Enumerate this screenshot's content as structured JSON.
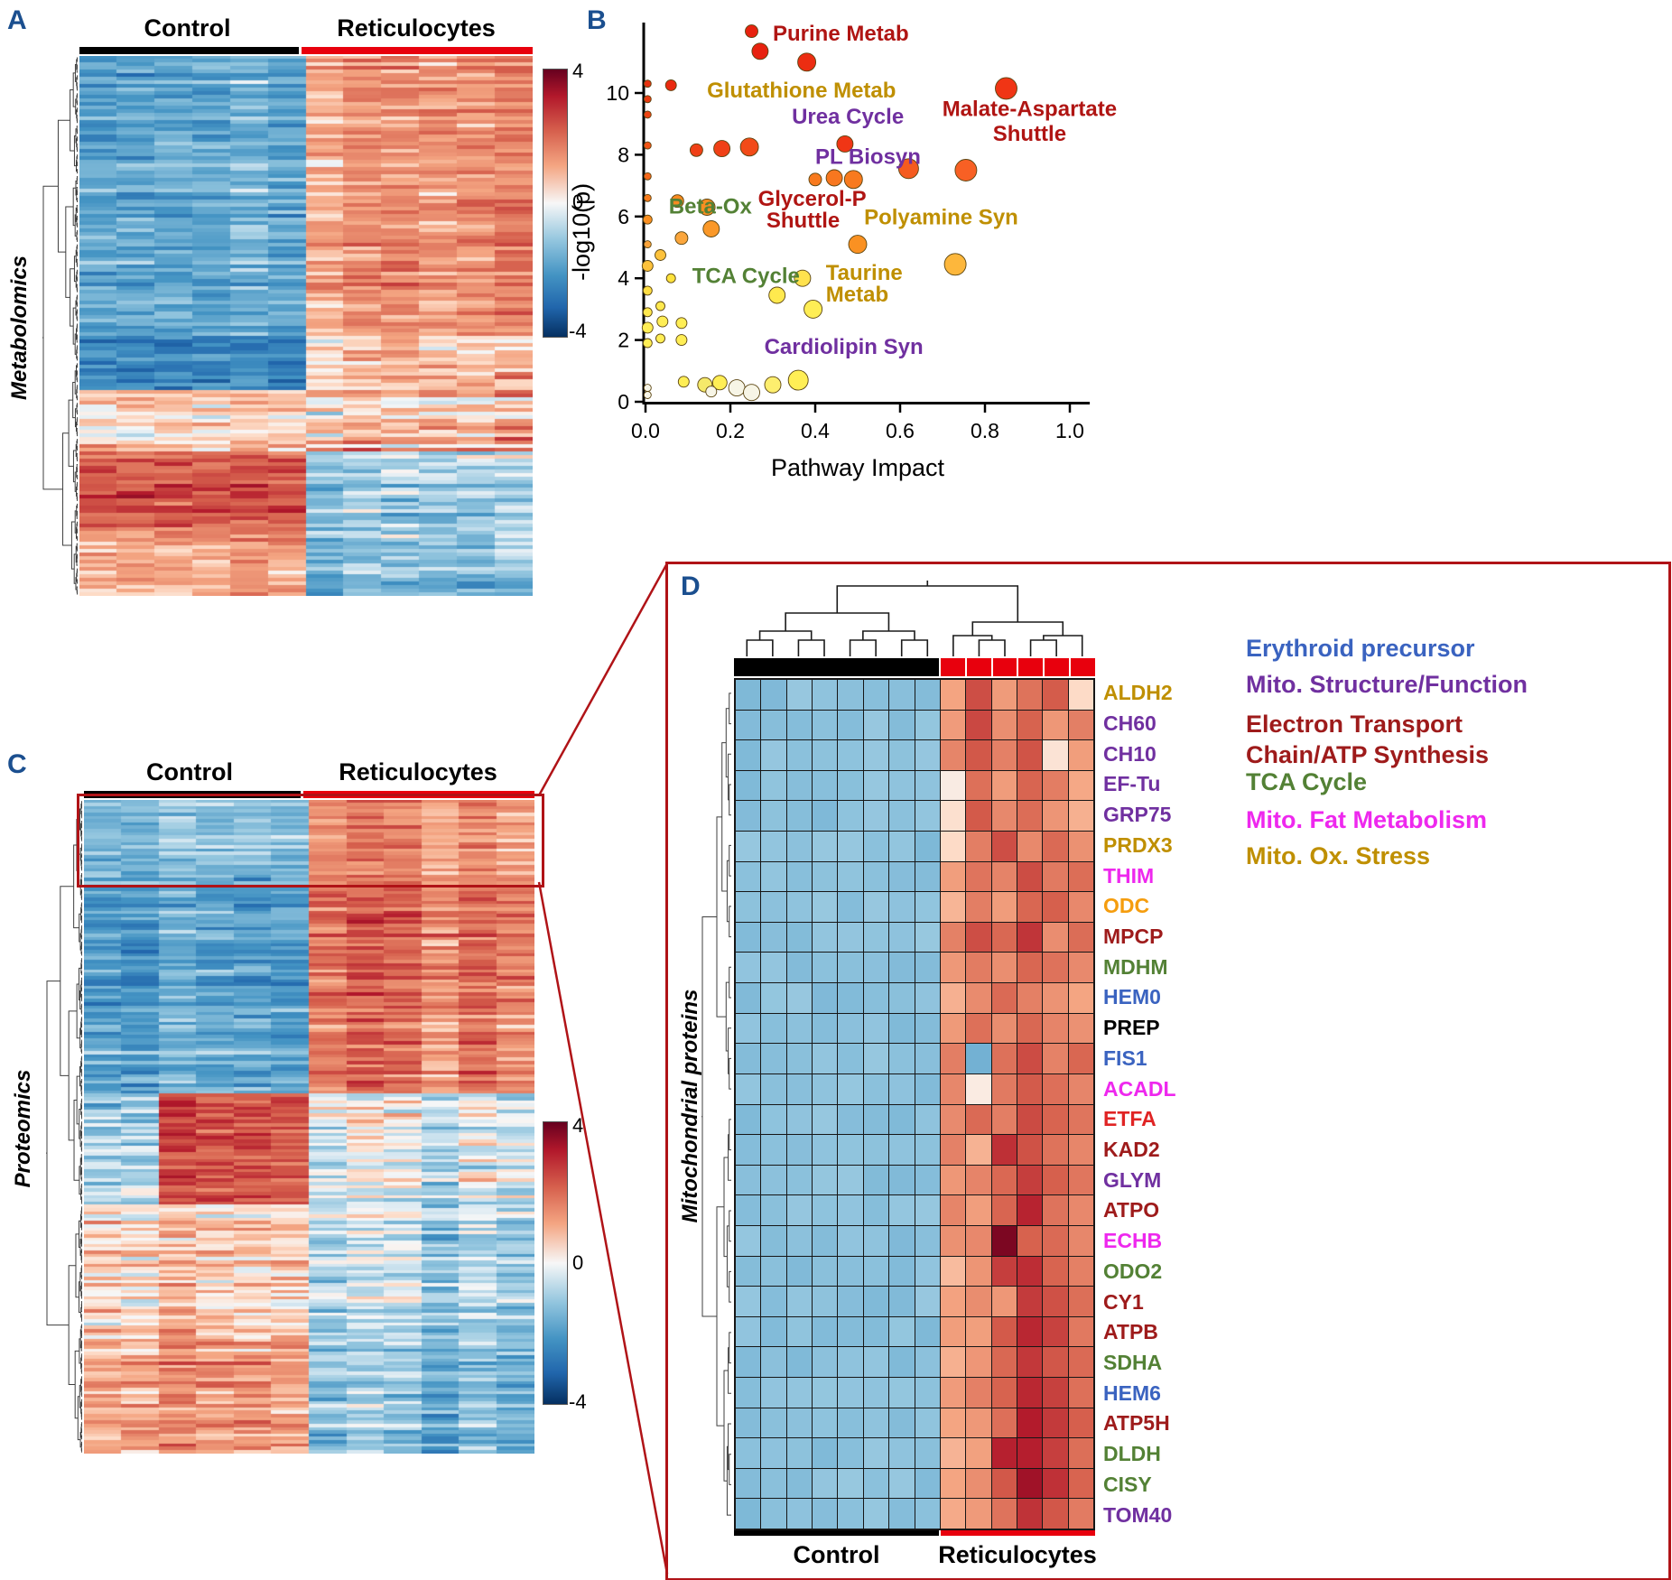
{
  "colors": {
    "panel_letter": "#1b4f8f",
    "highlight_red": "#b01317",
    "bar_black": "#000000",
    "bar_red": "#e8000d",
    "dendrogram": "#3f3f3f"
  },
  "colormap": {
    "stops": [
      [
        -4,
        "#053061"
      ],
      [
        -3,
        "#2166ac"
      ],
      [
        -2,
        "#4393c3"
      ],
      [
        -1,
        "#92c5de"
      ],
      [
        -0.4,
        "#d1e5f0"
      ],
      [
        0,
        "#f7f7f7"
      ],
      [
        0.4,
        "#fddbc7"
      ],
      [
        1,
        "#f4a582"
      ],
      [
        2,
        "#d6604d"
      ],
      [
        3,
        "#b2182b"
      ],
      [
        4,
        "#67001f"
      ]
    ]
  },
  "panels": {
    "a": "A",
    "b": "B",
    "c": "C",
    "d": "D"
  },
  "chart_data": [
    {
      "panel": "A",
      "type": "heatmap",
      "title": "Metabolomics",
      "col_groups": [
        {
          "name": "Control",
          "n": 6
        },
        {
          "name": "Reticulocytes",
          "n": 6
        }
      ],
      "n_rows": 150,
      "n_cols": 12,
      "value_range": [
        -4,
        4
      ],
      "colorbar_ticks": [
        "4",
        "0",
        "-4"
      ],
      "pattern_bands": [
        {
          "range": [
            0,
            0.52
          ],
          "control_mean": -1.7,
          "retic_mean": 1.3,
          "row_sd": 0.7,
          "cell_sd": 0.8
        },
        {
          "range": [
            0.52,
            0.62
          ],
          "control_mean": -2.4,
          "retic_mean": 0.7,
          "row_sd": 0.8,
          "cell_sd": 1.0
        },
        {
          "range": [
            0.62,
            0.73
          ],
          "control_mean": 0.6,
          "retic_mean": 0.9,
          "row_sd": 1.2,
          "cell_sd": 1.1
        },
        {
          "range": [
            0.73,
            0.88
          ],
          "control_mean": 1.9,
          "retic_mean": -0.8,
          "row_sd": 0.9,
          "cell_sd": 0.9
        },
        {
          "range": [
            0.88,
            1.01
          ],
          "control_mean": 0.9,
          "retic_mean": -1.2,
          "row_sd": 0.8,
          "cell_sd": 0.9
        }
      ]
    },
    {
      "panel": "B",
      "type": "scatter",
      "xlabel": "Pathway Impact",
      "ylabel": "-log10(p)",
      "xlim": [
        0,
        1.05
      ],
      "ylim": [
        0,
        12.3
      ],
      "xticks": [
        "0.0",
        "0.2",
        "0.4",
        "0.6",
        "0.8",
        "1.0"
      ],
      "yticks": [
        "0",
        "2",
        "4",
        "6",
        "8",
        "10"
      ],
      "points": [
        {
          "x": 0.005,
          "y": 10.3,
          "r": 4,
          "c": "#e63211"
        },
        {
          "x": 0.005,
          "y": 9.8,
          "r": 4,
          "c": "#e83a12"
        },
        {
          "x": 0.005,
          "y": 9.3,
          "r": 4,
          "c": "#ee4414"
        },
        {
          "x": 0.005,
          "y": 8.3,
          "r": 4,
          "c": "#f15317"
        },
        {
          "x": 0.005,
          "y": 7.3,
          "r": 4,
          "c": "#f5671c"
        },
        {
          "x": 0.005,
          "y": 6.6,
          "r": 4,
          "c": "#f87b1e"
        },
        {
          "x": 0.005,
          "y": 5.9,
          "r": 5,
          "c": "#fa8f21"
        },
        {
          "x": 0.005,
          "y": 5.1,
          "r": 4,
          "c": "#fba33a"
        },
        {
          "x": 0.005,
          "y": 4.4,
          "r": 6,
          "c": "#fdc23c"
        },
        {
          "x": 0.005,
          "y": 3.6,
          "r": 5,
          "c": "#fede44"
        },
        {
          "x": 0.005,
          "y": 2.9,
          "r": 5,
          "c": "#ffe84e"
        },
        {
          "x": 0.005,
          "y": 2.4,
          "r": 6,
          "c": "#ffee55"
        },
        {
          "x": 0.005,
          "y": 1.9,
          "r": 5,
          "c": "#ffee55"
        },
        {
          "x": 0.005,
          "y": 0.45,
          "r": 4,
          "c": "#f7f5e8"
        },
        {
          "x": 0.005,
          "y": 0.22,
          "r": 4,
          "c": "#f7f5e8"
        },
        {
          "x": 0.25,
          "y": 12.0,
          "r": 7,
          "c": "#e8220f"
        },
        {
          "x": 0.27,
          "y": 11.35,
          "r": 9,
          "c": "#e8220f"
        },
        {
          "x": 0.38,
          "y": 11.0,
          "r": 10,
          "c": "#ec2d12"
        },
        {
          "x": 0.06,
          "y": 10.25,
          "r": 6,
          "c": "#ea2a10"
        },
        {
          "x": 0.85,
          "y": 10.15,
          "r": 12,
          "c": "#f03515"
        },
        {
          "x": 0.12,
          "y": 8.15,
          "r": 7,
          "c": "#f04016"
        },
        {
          "x": 0.18,
          "y": 8.2,
          "r": 9,
          "c": "#f04016"
        },
        {
          "x": 0.245,
          "y": 8.25,
          "r": 10,
          "c": "#f24b18"
        },
        {
          "x": 0.47,
          "y": 8.35,
          "r": 9,
          "c": "#f03515"
        },
        {
          "x": 0.62,
          "y": 7.55,
          "r": 11,
          "c": "#f55b1f"
        },
        {
          "x": 0.755,
          "y": 7.5,
          "r": 12,
          "c": "#f86024"
        },
        {
          "x": 0.4,
          "y": 7.2,
          "r": 7,
          "c": "#f87a1e"
        },
        {
          "x": 0.445,
          "y": 7.25,
          "r": 9,
          "c": "#f8771f"
        },
        {
          "x": 0.49,
          "y": 7.2,
          "r": 10,
          "c": "#f87a1e"
        },
        {
          "x": 0.075,
          "y": 6.5,
          "r": 7,
          "c": "#f98a20"
        },
        {
          "x": 0.145,
          "y": 6.3,
          "r": 9,
          "c": "#fa8e21"
        },
        {
          "x": 0.155,
          "y": 5.6,
          "r": 9,
          "c": "#fa9828"
        },
        {
          "x": 0.085,
          "y": 5.3,
          "r": 7,
          "c": "#fba63c"
        },
        {
          "x": 0.5,
          "y": 5.1,
          "r": 10,
          "c": "#fa9122"
        },
        {
          "x": 0.73,
          "y": 4.45,
          "r": 12,
          "c": "#fdb73c"
        },
        {
          "x": 0.035,
          "y": 4.75,
          "r": 6,
          "c": "#fdc23c"
        },
        {
          "x": 0.06,
          "y": 4.0,
          "r": 5,
          "c": "#fde23c"
        },
        {
          "x": 0.37,
          "y": 4.0,
          "r": 9,
          "c": "#ffe24e"
        },
        {
          "x": 0.31,
          "y": 3.45,
          "r": 9,
          "c": "#ffe94e"
        },
        {
          "x": 0.395,
          "y": 3.0,
          "r": 10,
          "c": "#ffee55"
        },
        {
          "x": 0.035,
          "y": 3.1,
          "r": 5,
          "c": "#ffe94e"
        },
        {
          "x": 0.04,
          "y": 2.6,
          "r": 6,
          "c": "#ffee55"
        },
        {
          "x": 0.085,
          "y": 2.55,
          "r": 6,
          "c": "#ffee55"
        },
        {
          "x": 0.035,
          "y": 2.05,
          "r": 5,
          "c": "#ffee55"
        },
        {
          "x": 0.085,
          "y": 2.0,
          "r": 6,
          "c": "#ffee55"
        },
        {
          "x": 0.09,
          "y": 0.65,
          "r": 6,
          "c": "#ffee55"
        },
        {
          "x": 0.14,
          "y": 0.55,
          "r": 8,
          "c": "#f5e96a"
        },
        {
          "x": 0.175,
          "y": 0.62,
          "r": 8,
          "c": "#ffee55"
        },
        {
          "x": 0.215,
          "y": 0.45,
          "r": 9,
          "c": "#f7f5e6"
        },
        {
          "x": 0.25,
          "y": 0.3,
          "r": 9,
          "c": "#f7f5e6"
        },
        {
          "x": 0.3,
          "y": 0.55,
          "r": 9,
          "c": "#fdee6e"
        },
        {
          "x": 0.36,
          "y": 0.7,
          "r": 11,
          "c": "#ffee55"
        },
        {
          "x": 0.155,
          "y": 0.33,
          "r": 6,
          "c": "#f7f5e6"
        }
      ],
      "annotations": [
        {
          "text": "Purine Metab",
          "x": 0.3,
          "y": 11.7,
          "color": "#b01513",
          "anchor": "start"
        },
        {
          "text": "Glutathione Metab",
          "x": 0.145,
          "y": 9.85,
          "color": "#bf8f00",
          "anchor": "start"
        },
        {
          "text": "Urea Cycle",
          "x": 0.345,
          "y": 9.0,
          "color": "#7030a0",
          "anchor": "start"
        },
        {
          "text": "Malate-Aspartate",
          "x": 0.905,
          "y": 9.25,
          "color": "#b01513",
          "anchor": "middle"
        },
        {
          "text": "Shuttle",
          "x": 0.905,
          "y": 8.45,
          "color": "#b01513",
          "anchor": "middle"
        },
        {
          "text": "PL Biosyn",
          "x": 0.4,
          "y": 7.7,
          "color": "#7030a0",
          "anchor": "start"
        },
        {
          "text": "Beta-Ox",
          "x": 0.055,
          "y": 6.1,
          "color": "#538135",
          "anchor": "start"
        },
        {
          "text": "Glycerol-P",
          "x": 0.265,
          "y": 6.35,
          "color": "#b01513",
          "anchor": "start"
        },
        {
          "text": "Shuttle",
          "x": 0.285,
          "y": 5.65,
          "color": "#b01513",
          "anchor": "start"
        },
        {
          "text": "Polyamine Syn",
          "x": 0.515,
          "y": 5.75,
          "color": "#bf8f00",
          "anchor": "start"
        },
        {
          "text": "TCA Cycle",
          "x": 0.11,
          "y": 3.85,
          "color": "#538135",
          "anchor": "start"
        },
        {
          "text": "Taurine",
          "x": 0.425,
          "y": 3.95,
          "color": "#bf8f00",
          "anchor": "start"
        },
        {
          "text": "Metab",
          "x": 0.425,
          "y": 3.25,
          "color": "#bf8f00",
          "anchor": "start"
        },
        {
          "text": "Cardiolipin Syn",
          "x": 0.28,
          "y": 1.55,
          "color": "#7030a0",
          "anchor": "start"
        }
      ]
    },
    {
      "panel": "C",
      "type": "heatmap",
      "title": "Proteomics",
      "col_groups": [
        {
          "name": "Control",
          "n": 6
        },
        {
          "name": "Reticulocytes",
          "n": 6
        }
      ],
      "n_rows": 200,
      "n_cols": 12,
      "value_range": [
        -4,
        4
      ],
      "colorbar_ticks": [
        "4",
        "0",
        "-4"
      ],
      "highlight_rows": [
        0,
        0.12
      ],
      "pattern_bands": [
        {
          "range": [
            0,
            0.12
          ],
          "control_mean": -1.0,
          "retic_mean": 1.3,
          "row_sd": 0.5,
          "cell_sd": 0.7
        },
        {
          "range": [
            0.12,
            0.45
          ],
          "control_mean": -1.5,
          "retic_mean": 1.7,
          "row_sd": 0.7,
          "cell_sd": 0.8
        },
        {
          "range": [
            0.45,
            0.62
          ],
          "control_mean": -0.6,
          "retic_mean": -0.2,
          "row_sd": 0.9,
          "cell_sd": 0.9,
          "control_block": {
            "cols": [
              2,
              5
            ],
            "mean": 2.3
          }
        },
        {
          "range": [
            0.62,
            0.82
          ],
          "control_mean": 0.7,
          "retic_mean": -0.8,
          "row_sd": 0.9,
          "cell_sd": 0.9
        },
        {
          "range": [
            0.82,
            1.01
          ],
          "control_mean": 1.2,
          "retic_mean": -1.2,
          "row_sd": 0.8,
          "cell_sd": 0.9
        }
      ]
    },
    {
      "panel": "D",
      "type": "heatmap",
      "title": "Mitochondrial proteins",
      "col_groups": [
        {
          "name": "Control",
          "n": 8
        },
        {
          "name": "Reticulocytes",
          "n": 6
        }
      ],
      "value_range": [
        -4,
        4
      ],
      "control_value": -1.1,
      "rows": [
        {
          "name": "ALDH2",
          "color": "#bf8f00",
          "retic": [
            1.0,
            2.2,
            1.2,
            1.8,
            2.0,
            0.4
          ]
        },
        {
          "name": "CH60",
          "color": "#7030a0",
          "retic": [
            1.2,
            2.4,
            1.4,
            2.0,
            1.2,
            1.5
          ]
        },
        {
          "name": "CH10",
          "color": "#7030a0",
          "retic": [
            1.4,
            2.2,
            1.6,
            2.2,
            0.3,
            1.2
          ]
        },
        {
          "name": "EF-Tu",
          "color": "#7030a0",
          "retic": [
            0.2,
            1.8,
            1.2,
            2.0,
            1.5,
            1.0
          ]
        },
        {
          "name": "GRP75",
          "color": "#7030a0",
          "retic": [
            0.3,
            2.0,
            1.5,
            1.8,
            1.2,
            0.8
          ]
        },
        {
          "name": "PRDX3",
          "color": "#bf8f00",
          "retic": [
            0.4,
            1.6,
            2.2,
            1.4,
            1.8,
            1.2
          ]
        },
        {
          "name": "THIM",
          "color": "#ee28ee",
          "retic": [
            1.2,
            1.8,
            1.4,
            2.2,
            1.6,
            1.9
          ]
        },
        {
          "name": "ODC",
          "color": "#f59d0e",
          "retic": [
            0.8,
            1.5,
            1.2,
            1.8,
            2.0,
            1.4
          ]
        },
        {
          "name": "MPCP",
          "color": "#9e1b1b",
          "retic": [
            1.5,
            2.2,
            1.8,
            2.6,
            1.4,
            1.8
          ]
        },
        {
          "name": "MDHM",
          "color": "#538135",
          "retic": [
            1.2,
            1.6,
            1.4,
            2.0,
            1.8,
            1.5
          ]
        },
        {
          "name": "HEM0",
          "color": "#3a63c0",
          "retic": [
            0.9,
            1.4,
            1.8,
            1.5,
            1.2,
            1.0
          ]
        },
        {
          "name": "PREP",
          "color": "#000000",
          "retic": [
            1.1,
            1.7,
            1.3,
            1.9,
            1.5,
            1.2
          ]
        },
        {
          "name": "FIS1",
          "color": "#3a63c0",
          "retic": [
            1.6,
            -1.4,
            1.8,
            2.2,
            1.5,
            1.8
          ]
        },
        {
          "name": "ACADL",
          "color": "#ee28ee",
          "retic": [
            1.4,
            0.2,
            1.6,
            2.0,
            1.8,
            1.5
          ]
        },
        {
          "name": "ETFA",
          "color": "#e02424",
          "retic": [
            1.3,
            1.8,
            1.5,
            2.2,
            2.0,
            1.6
          ]
        },
        {
          "name": "KAD2",
          "color": "#9e1b1b",
          "retic": [
            1.5,
            0.9,
            2.6,
            2.2,
            1.8,
            1.4
          ]
        },
        {
          "name": "GLYM",
          "color": "#7030a0",
          "retic": [
            1.2,
            1.5,
            1.8,
            2.4,
            2.0,
            1.6
          ]
        },
        {
          "name": "ATPO",
          "color": "#9e1b1b",
          "retic": [
            1.4,
            1.2,
            2.0,
            2.8,
            1.8,
            1.5
          ]
        },
        {
          "name": "ECHB",
          "color": "#ee28ee",
          "retic": [
            1.2,
            1.5,
            3.8,
            2.0,
            1.8,
            1.4
          ]
        },
        {
          "name": "ODO2",
          "color": "#538135",
          "retic": [
            0.8,
            1.2,
            2.4,
            2.8,
            2.0,
            1.5
          ]
        },
        {
          "name": "CY1",
          "color": "#9e1b1b",
          "retic": [
            1.0,
            1.4,
            1.2,
            2.6,
            2.2,
            1.8
          ]
        },
        {
          "name": "ATPB",
          "color": "#9e1b1b",
          "retic": [
            1.2,
            1.0,
            2.0,
            2.8,
            2.4,
            1.6
          ]
        },
        {
          "name": "SDHA",
          "color": "#538135",
          "retic": [
            0.9,
            1.3,
            1.8,
            2.6,
            2.2,
            1.9
          ]
        },
        {
          "name": "HEM6",
          "color": "#3a63c0",
          "retic": [
            1.1,
            1.5,
            2.0,
            2.8,
            2.4,
            1.8
          ]
        },
        {
          "name": "ATP5H",
          "color": "#9e1b1b",
          "retic": [
            1.0,
            1.2,
            1.8,
            2.9,
            2.6,
            2.0
          ]
        },
        {
          "name": "DLDH",
          "color": "#538135",
          "retic": [
            0.8,
            1.1,
            2.8,
            3.0,
            2.4,
            1.8
          ]
        },
        {
          "name": "CISY",
          "color": "#538135",
          "retic": [
            1.0,
            1.4,
            2.2,
            3.2,
            2.6,
            2.0
          ]
        },
        {
          "name": "TOM40",
          "color": "#7030a0",
          "retic": [
            0.9,
            1.2,
            1.8,
            2.6,
            2.2,
            1.6
          ]
        }
      ],
      "legend": [
        {
          "label": "Erythroid precursor",
          "color": "#3a63c0"
        },
        {
          "label": "Mito. Structure/Function",
          "color": "#7030a0"
        },
        {
          "label": "Electron Transport",
          "color": "#9e1b1b"
        },
        {
          "label": "Chain/ATP Synthesis",
          "color": "#9e1b1b"
        },
        {
          "label": "TCA Cycle",
          "color": "#538135"
        },
        {
          "label": "Mito. Fat Metabolism",
          "color": "#ee28ee"
        },
        {
          "label": "Mito. Ox. Stress",
          "color": "#bf8f00"
        }
      ]
    }
  ]
}
